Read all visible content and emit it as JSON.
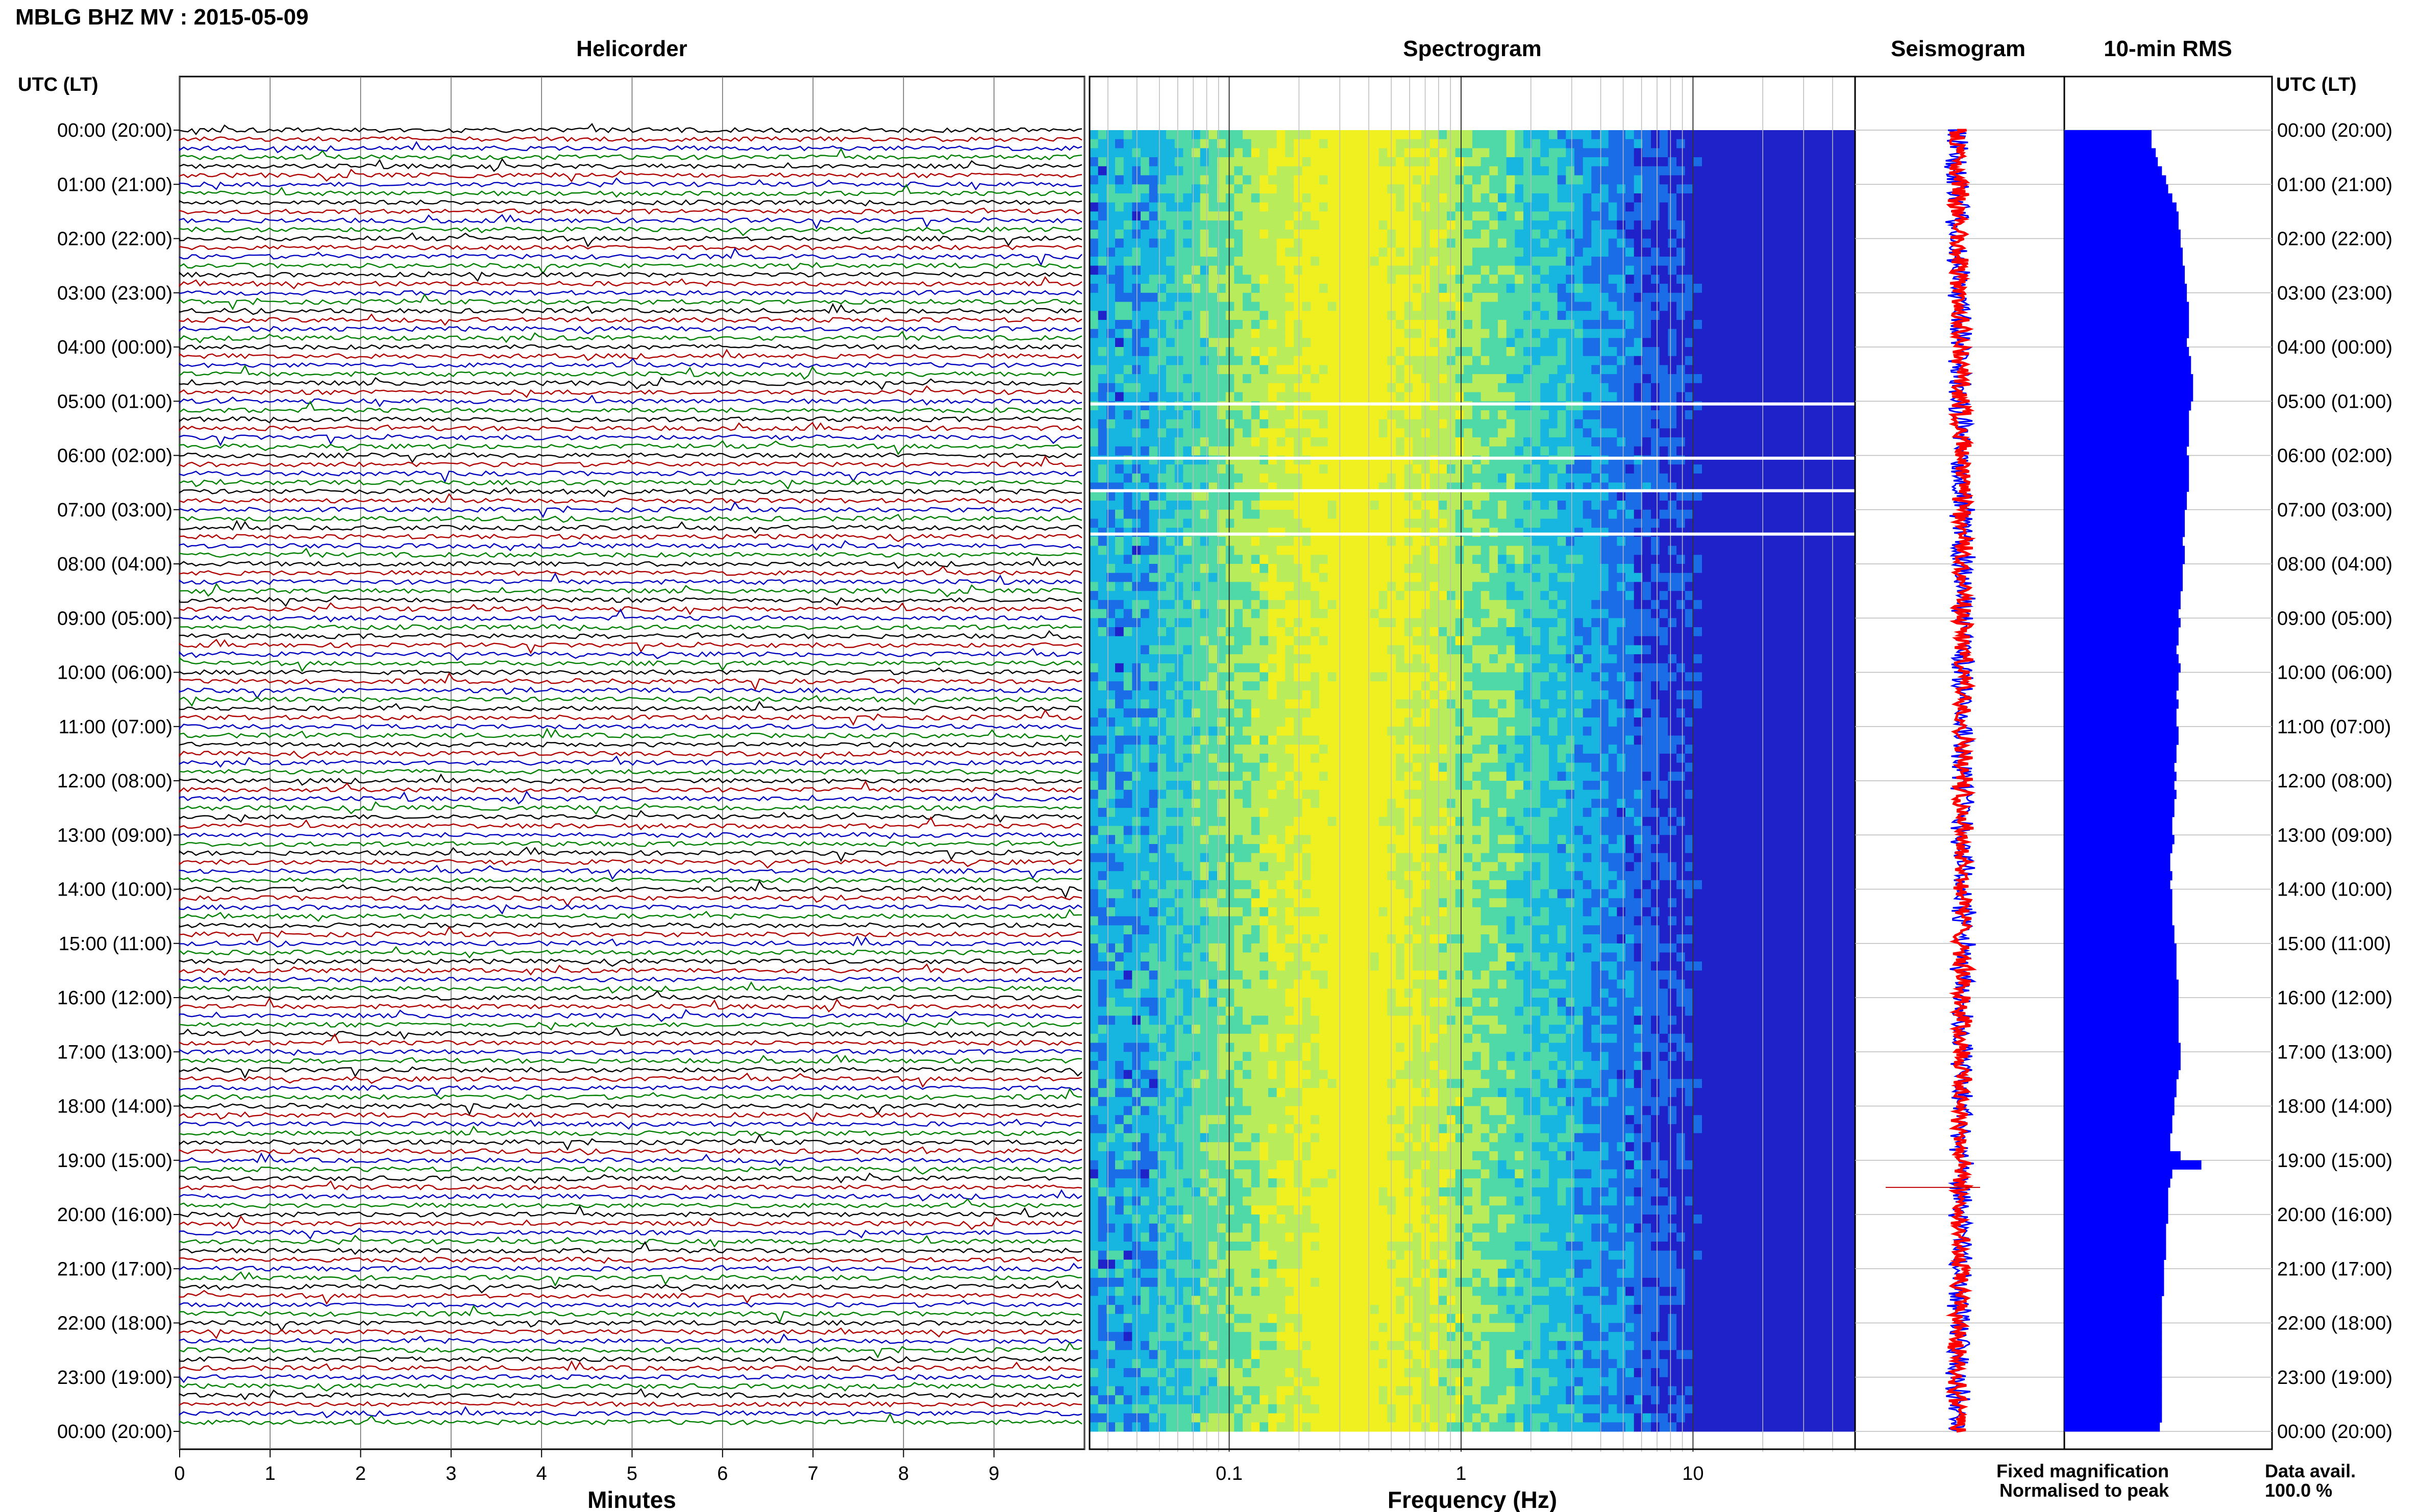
{
  "header": {
    "station_title": "MBLG BHZ MV : 2015-05-09",
    "left_axis_label": "UTC (LT)",
    "right_axis_label": "UTC (LT)"
  },
  "panels": {
    "helicorder": "Helicorder",
    "spectrogram": "Spectrogram",
    "seismogram": "Seismogram",
    "rms": "10-min RMS"
  },
  "x_labels": {
    "helicorder": "Minutes",
    "spectrogram": "Frequency (Hz)"
  },
  "legend": {
    "fixed": "Fixed magnification",
    "normalised": "Normalised to peak",
    "fixed_color": "#0000ff",
    "normalised_color": "#ff0000"
  },
  "data_avail": {
    "label": "Data avail.",
    "value": "100.0 %"
  },
  "chart_data": {
    "type": "heatmap",
    "time_labels": [
      "00:00 (20:00)",
      "01:00 (21:00)",
      "02:00 (22:00)",
      "03:00 (23:00)",
      "04:00 (00:00)",
      "05:00 (01:00)",
      "06:00 (02:00)",
      "07:00 (03:00)",
      "08:00 (04:00)",
      "09:00 (05:00)",
      "10:00 (06:00)",
      "11:00 (07:00)",
      "12:00 (08:00)",
      "13:00 (09:00)",
      "14:00 (10:00)",
      "15:00 (11:00)",
      "16:00 (12:00)",
      "17:00 (13:00)",
      "18:00 (14:00)",
      "19:00 (15:00)",
      "20:00 (16:00)",
      "21:00 (17:00)",
      "22:00 (18:00)",
      "23:00 (19:00)",
      "00:00 (20:00)"
    ],
    "minute_ticks": [
      "0",
      "1",
      "2",
      "3",
      "4",
      "5",
      "6",
      "7",
      "8",
      "9"
    ],
    "helicorder_trace_colors": [
      "#000000",
      "#b00000",
      "#0000c0",
      "#008000"
    ],
    "frequency_ticks": [
      "0.1",
      "1",
      "10"
    ],
    "frequency_range_hz": [
      0.025,
      50
    ],
    "frequency_scale": "log",
    "spectrogram_colors": [
      "#1e22c8",
      "#1a6de6",
      "#16b6e0",
      "#4fd8a8",
      "#b8ec5a",
      "#f0f020"
    ],
    "rms_relative": [
      0.42,
      0.42,
      0.44,
      0.45,
      0.47,
      0.49,
      0.5,
      0.52,
      0.54,
      0.55,
      0.55,
      0.56,
      0.56,
      0.57,
      0.57,
      0.58,
      0.58,
      0.59,
      0.59,
      0.6,
      0.6,
      0.6,
      0.6,
      0.59,
      0.6,
      0.61,
      0.61,
      0.62,
      0.62,
      0.62,
      0.61,
      0.6,
      0.6,
      0.6,
      0.6,
      0.59,
      0.6,
      0.6,
      0.6,
      0.6,
      0.59,
      0.59,
      0.58,
      0.58,
      0.58,
      0.57,
      0.58,
      0.58,
      0.57,
      0.57,
      0.57,
      0.56,
      0.56,
      0.55,
      0.56,
      0.55,
      0.55,
      0.54,
      0.55,
      0.56,
      0.55,
      0.55,
      0.54,
      0.55,
      0.54,
      0.54,
      0.55,
      0.55,
      0.54,
      0.54,
      0.53,
      0.54,
      0.53,
      0.54,
      0.53,
      0.53,
      0.52,
      0.52,
      0.53,
      0.52,
      0.51,
      0.51,
      0.52,
      0.51,
      0.52,
      0.52,
      0.52,
      0.52,
      0.53,
      0.53,
      0.54,
      0.54,
      0.54,
      0.54,
      0.55,
      0.55,
      0.55,
      0.55,
      0.55,
      0.55,
      0.55,
      0.56,
      0.56,
      0.56,
      0.55,
      0.54,
      0.54,
      0.53,
      0.53,
      0.52,
      0.52,
      0.51,
      0.51,
      0.56,
      0.66,
      0.52,
      0.51,
      0.5,
      0.5,
      0.5,
      0.5,
      0.49,
      0.49,
      0.49,
      0.49,
      0.48,
      0.48,
      0.48,
      0.48,
      0.47,
      0.47,
      0.47,
      0.47,
      0.47,
      0.47,
      0.47,
      0.47,
      0.47,
      0.47,
      0.47,
      0.47,
      0.47,
      0.47,
      0.46
    ]
  }
}
